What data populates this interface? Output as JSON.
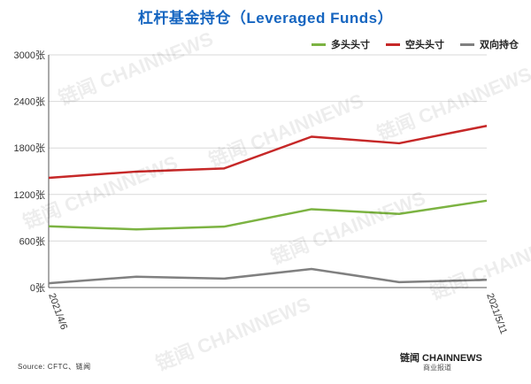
{
  "title": "杠杆基金持仓（Leveraged Funds）",
  "source": "Source: CFTC、链闻",
  "brand": {
    "name": "链闻 CHAINNEWS",
    "sub": "商业报道"
  },
  "watermark": "链闻 CHAINNEWS",
  "chart_data": {
    "type": "line",
    "title": "杠杆基金持仓（Leveraged Funds）",
    "xlabel": "",
    "ylabel": "",
    "ylim": [
      0,
      3000
    ],
    "yticks": [
      "0张",
      "600张",
      "1200张",
      "1800张",
      "2400张",
      "3000张"
    ],
    "ytick_values": [
      0,
      600,
      1200,
      1800,
      2400,
      3000
    ],
    "x_labels": [
      "2021/4/6",
      "",
      "",
      "",
      "",
      "2021/5/11"
    ],
    "grid": true,
    "legend_position": "top-right",
    "series": [
      {
        "name": "多头头寸",
        "color": "#7CB342",
        "values": [
          790,
          750,
          785,
          1010,
          950,
          1120
        ]
      },
      {
        "name": "空头头寸",
        "color": "#C62828",
        "values": [
          1415,
          1495,
          1535,
          1945,
          1860,
          2085
        ]
      },
      {
        "name": "双向持仓",
        "color": "#808080",
        "values": [
          55,
          140,
          115,
          240,
          70,
          100
        ]
      }
    ]
  }
}
